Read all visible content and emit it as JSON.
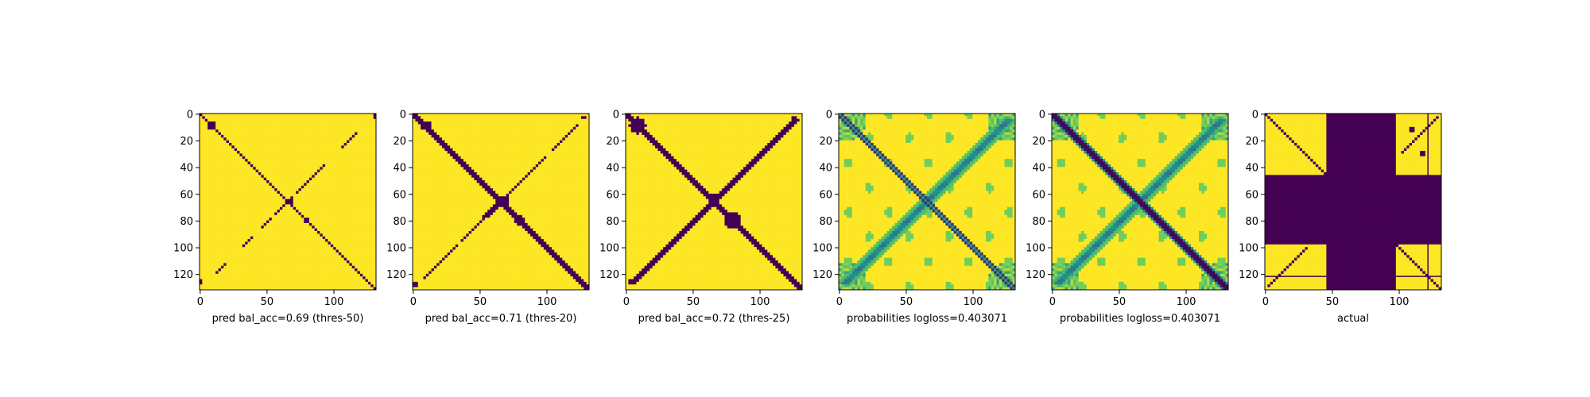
{
  "chart_data": [
    {
      "type": "heatmap",
      "kind": "binary",
      "xlabel": "pred bal_acc=0.69 (thres-50)",
      "xticks": [
        0,
        50,
        100
      ],
      "yticks": [
        0,
        20,
        40,
        60,
        80,
        100,
        120
      ],
      "xlim": [
        0,
        132
      ],
      "ylim": [
        132,
        0
      ],
      "colors": {
        "low": "#440154",
        "high": "#fde725"
      },
      "main_diagonal": {
        "half_width": 1.2
      },
      "anti_diagonal_segments": [
        {
          "from": 15,
          "to": 25,
          "half_width": 1.0
        },
        {
          "from": 38,
          "to": 60,
          "half_width": 0.9
        },
        {
          "from": 62,
          "to": 75,
          "half_width": 1.0
        },
        {
          "from": 78,
          "to": 86,
          "half_width": 1.0
        },
        {
          "from": 92,
          "to": 100,
          "half_width": 0.9
        },
        {
          "from": 112,
          "to": 120,
          "half_width": 0.9
        }
      ],
      "blobs": [
        {
          "x": 9,
          "y": 9,
          "r": 3
        },
        {
          "x": 68,
          "y": 66,
          "r": 3
        },
        {
          "x": 80,
          "y": 80,
          "r": 3
        }
      ],
      "corner_spots": [
        {
          "x": 131,
          "y": 2
        },
        {
          "x": 1,
          "y": 126
        }
      ]
    },
    {
      "type": "heatmap",
      "kind": "binary",
      "xlabel": "pred bal_acc=0.71 (thres-20)",
      "xticks": [
        0,
        50,
        100
      ],
      "yticks": [
        0,
        20,
        40,
        60,
        80,
        100,
        120
      ],
      "xlim": [
        0,
        132
      ],
      "ylim": [
        132,
        0
      ],
      "colors": {
        "low": "#440154",
        "high": "#fde725"
      },
      "main_diagonal": {
        "half_width": 1.6
      },
      "anti_diagonal_segments": [
        {
          "from": 8,
          "to": 28,
          "half_width": 1.1
        },
        {
          "from": 32,
          "to": 62,
          "half_width": 1.2
        },
        {
          "from": 62,
          "to": 78,
          "half_width": 1.4
        },
        {
          "from": 78,
          "to": 95,
          "half_width": 1.3
        },
        {
          "from": 98,
          "to": 124,
          "half_width": 1.1
        }
      ],
      "blobs": [
        {
          "x": 10,
          "y": 9,
          "r": 4
        },
        {
          "x": 68,
          "y": 66,
          "r": 3.5
        },
        {
          "x": 80,
          "y": 80,
          "r": 4
        }
      ],
      "corner_spots": [
        {
          "x": 128,
          "y": 3
        },
        {
          "x": 2,
          "y": 128
        }
      ]
    },
    {
      "type": "heatmap",
      "kind": "binary",
      "xlabel": "pred bal_acc=0.72 (thres-25)",
      "xticks": [
        0,
        50,
        100
      ],
      "yticks": [
        0,
        20,
        40,
        60,
        80,
        100,
        120
      ],
      "xlim": [
        0,
        132
      ],
      "ylim": [
        132,
        0
      ],
      "colors": {
        "low": "#440154",
        "high": "#fde725"
      },
      "main_diagonal": {
        "half_width": 2.4
      },
      "anti_diagonal_segments": [
        {
          "from": 4,
          "to": 30,
          "half_width": 1.8
        },
        {
          "from": 30,
          "to": 62,
          "half_width": 1.9
        },
        {
          "from": 62,
          "to": 80,
          "half_width": 2.4
        },
        {
          "from": 80,
          "to": 100,
          "half_width": 2.0
        },
        {
          "from": 100,
          "to": 128,
          "half_width": 1.8
        }
      ],
      "blobs": [
        {
          "x": 9,
          "y": 9,
          "r": 6
        },
        {
          "x": 66,
          "y": 64,
          "r": 5
        },
        {
          "x": 80,
          "y": 80,
          "r": 6
        }
      ],
      "corner_spots": [
        {
          "x": 126,
          "y": 4
        },
        {
          "x": 4,
          "y": 126
        }
      ]
    },
    {
      "type": "heatmap",
      "kind": "probability",
      "xlabel": "probabilities logloss=0.403071",
      "xticks": [
        0,
        50,
        100
      ],
      "yticks": [
        0,
        20,
        40,
        60,
        80,
        100,
        120
      ],
      "xlim": [
        0,
        132
      ],
      "ylim": [
        132,
        0
      ],
      "colorscale": [
        "#440154",
        "#31688e",
        "#21918c",
        "#5ec962",
        "#fde725"
      ],
      "low_value": 0.0,
      "high_value": 1.0,
      "main_diagonal": {
        "style": "double_line",
        "half_width": 2.2
      },
      "anti_diagonal": {
        "from": 4,
        "to": 128,
        "half_width": 2.5
      }
    },
    {
      "type": "heatmap",
      "kind": "probability",
      "xlabel": "probabilities logloss=0.403071",
      "xticks": [
        0,
        50,
        100
      ],
      "yticks": [
        0,
        20,
        40,
        60,
        80,
        100,
        120
      ],
      "xlim": [
        0,
        132
      ],
      "ylim": [
        132,
        0
      ],
      "colorscale": [
        "#440154",
        "#31688e",
        "#21918c",
        "#5ec962",
        "#fde725"
      ],
      "main_diagonal": {
        "style": "solid",
        "half_width": 2.8
      },
      "anti_diagonal": {
        "from": 4,
        "to": 128,
        "half_width": 2.5
      }
    },
    {
      "type": "heatmap",
      "kind": "binary",
      "xlabel": "actual",
      "xticks": [
        0,
        50,
        100
      ],
      "yticks": [
        0,
        20,
        40,
        60,
        80,
        100,
        120
      ],
      "xlim": [
        0,
        132
      ],
      "ylim": [
        132,
        0
      ],
      "colors": {
        "low": "#440154",
        "high": "#fde725"
      },
      "masked_columns": [
        46,
        98
      ],
      "masked_rows": [
        46,
        98
      ],
      "grid_lines": {
        "rows": [
          122
        ],
        "columns": [
          122
        ]
      },
      "main_diagonal": {
        "half_width": 1.0
      },
      "anti_diagonal_segments": [
        {
          "from": 2,
          "to": 30,
          "half_width": 1.0
        },
        {
          "from": 100,
          "to": 130,
          "half_width": 1.0
        }
      ],
      "blobs": [
        {
          "x": 110,
          "y": 12,
          "r": 2
        },
        {
          "x": 118,
          "y": 30,
          "r": 1.5
        }
      ]
    }
  ]
}
